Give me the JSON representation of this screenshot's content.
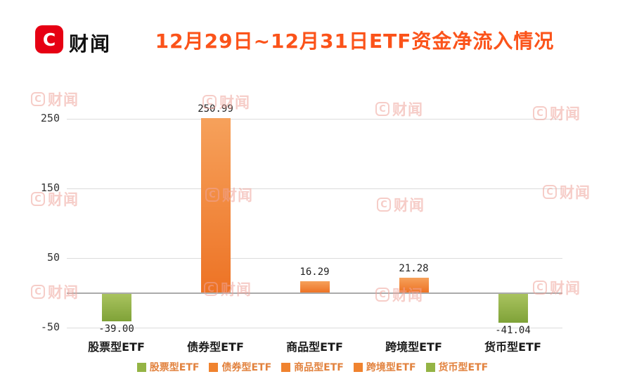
{
  "brand": {
    "name": "财闻",
    "logo_glyph": "C"
  },
  "watermark": {
    "text": "财闻",
    "logo_glyph": "C"
  },
  "chart_data": {
    "type": "bar",
    "title": "12月29日~12月31日ETF资金净流入情况",
    "categories": [
      "股票型ETF",
      "债券型ETF",
      "商品型ETF",
      "跨境型ETF",
      "货币型ETF"
    ],
    "values": [
      -39.0,
      250.99,
      16.29,
      21.28,
      -41.04
    ],
    "value_labels": [
      "-39.00",
      "250.99",
      "16.29",
      "21.28",
      "-41.04"
    ],
    "bar_colors": [
      "green",
      "orange",
      "orange",
      "orange",
      "green"
    ],
    "y_ticks": [
      -50,
      50,
      150,
      250
    ],
    "ylim": [
      -60,
      290
    ],
    "xlabel": "",
    "ylabel": "",
    "grid": true,
    "legend_position": "bottom",
    "legend": [
      {
        "label": "股票型ETF",
        "color": "green"
      },
      {
        "label": "债券型ETF",
        "color": "orange"
      },
      {
        "label": "商品型ETF",
        "color": "orange"
      },
      {
        "label": "跨境型ETF",
        "color": "orange"
      },
      {
        "label": "货币型ETF",
        "color": "green"
      }
    ]
  },
  "colors": {
    "title": "#FB531A",
    "logo_bg": "#E60013",
    "logo_fg": "#FFFFFF",
    "watermark": "#F0A59C",
    "legend_text": "#E2823E",
    "grid": "#DCDCDC",
    "axis": "#ABABAB",
    "green_top": "#A9C35F",
    "green_bottom": "#7FA238",
    "green_solid": "#94B445",
    "orange_top": "#F6A15B",
    "orange_bottom": "#ED7325",
    "orange_solid": "#F0832F"
  }
}
